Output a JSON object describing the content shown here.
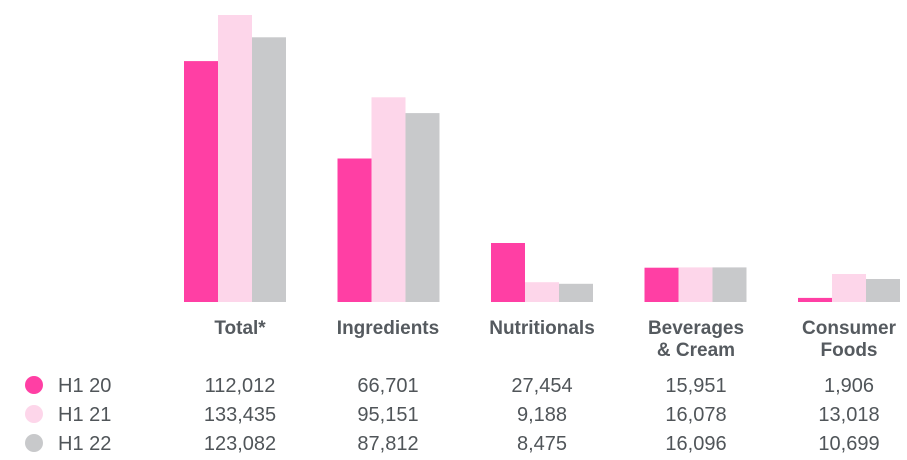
{
  "chart_data": {
    "type": "bar",
    "categories": [
      [
        "Total*"
      ],
      [
        "Ingredients"
      ],
      [
        "Nutritionals"
      ],
      [
        "Beverages",
        "& Cream"
      ],
      [
        "Consumer",
        "Foods"
      ]
    ],
    "series": [
      {
        "name": "H1 20",
        "color": "#ff3fa4",
        "values": [
          112012,
          66701,
          27454,
          15951,
          1906
        ],
        "labels": [
          "112,012",
          "66,701",
          "27,454",
          "15,951",
          "1,906"
        ]
      },
      {
        "name": "H1 21",
        "color": "#fdd6ea",
        "values": [
          133435,
          95151,
          9188,
          16078,
          13018
        ],
        "labels": [
          "133,435",
          "95,151",
          "9,188",
          "16,078",
          "13,018"
        ]
      },
      {
        "name": "H1 22",
        "color": "#c8c9cb",
        "values": [
          123082,
          87812,
          8475,
          16096,
          10699
        ],
        "labels": [
          "123,082",
          "87,812",
          "8,475",
          "16,096",
          "10,699"
        ]
      }
    ],
    "ylim": [
      0,
      133435
    ],
    "grid": false,
    "legend_position": "bottom-left table"
  }
}
